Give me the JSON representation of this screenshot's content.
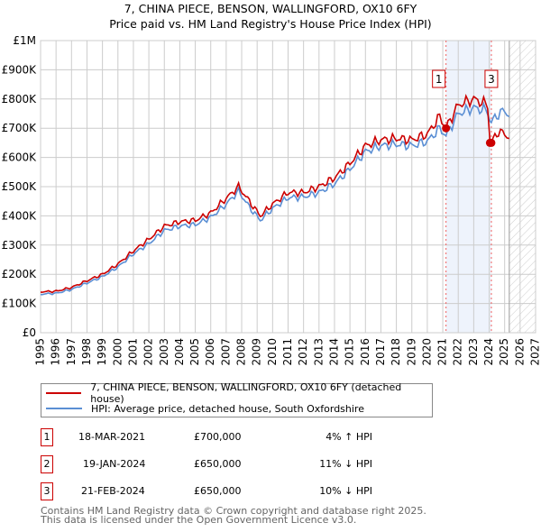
{
  "chart_data": {
    "type": "line",
    "title": "7, CHINA PIECE, BENSON, WALLINGFORD, OX10 6FY",
    "subtitle": "Price paid vs. HM Land Registry's House Price Index (HPI)",
    "xlim": [
      1995,
      2027
    ],
    "ylim": [
      0,
      1000000
    ],
    "y_ticks": [
      {
        "v": 0,
        "label": "£0"
      },
      {
        "v": 100000,
        "label": "£100K"
      },
      {
        "v": 200000,
        "label": "£200K"
      },
      {
        "v": 300000,
        "label": "£300K"
      },
      {
        "v": 400000,
        "label": "£400K"
      },
      {
        "v": 500000,
        "label": "£500K"
      },
      {
        "v": 600000,
        "label": "£600K"
      },
      {
        "v": 700000,
        "label": "£700K"
      },
      {
        "v": 800000,
        "label": "£800K"
      },
      {
        "v": 900000,
        "label": "£900K"
      },
      {
        "v": 1000000,
        "label": "£1M"
      }
    ],
    "x_ticks": [
      "1995",
      "1996",
      "1997",
      "1998",
      "1999",
      "2000",
      "2001",
      "2002",
      "2003",
      "2004",
      "2005",
      "2006",
      "2007",
      "2008",
      "2009",
      "2010",
      "2011",
      "2012",
      "2013",
      "2014",
      "2015",
      "2016",
      "2017",
      "2018",
      "2019",
      "2020",
      "2021",
      "2022",
      "2023",
      "2024",
      "2025",
      "2026",
      "2027"
    ],
    "grid": true,
    "shaded_range": [
      2021.21,
      2024.14
    ],
    "forecast_hatch_from": 2025.3,
    "series": [
      {
        "name": "7, CHINA PIECE, BENSON, WALLINGFORD, OX10 6FY (detached house)",
        "color": "#cc0000",
        "x": [
          1995,
          1996,
          1997,
          1998,
          1999,
          2000,
          2001,
          2002,
          2003,
          2004,
          2005,
          2006,
          2007,
          2007.8,
          2008.5,
          2009.2,
          2010,
          2011,
          2012,
          2013,
          2014,
          2015,
          2016,
          2017,
          2018,
          2019,
          2020,
          2020.8,
          2021.21,
          2022,
          2023,
          2023.9,
          2024.06,
          2024.14,
          2024.6,
          2025,
          2025.3
        ],
        "y": [
          140000,
          142000,
          155000,
          178000,
          200000,
          235000,
          280000,
          320000,
          365000,
          380000,
          385000,
          410000,
          460000,
          500000,
          450000,
          400000,
          440000,
          480000,
          480000,
          500000,
          530000,
          580000,
          640000,
          660000,
          665000,
          660000,
          680000,
          740000,
          700000,
          780000,
          800000,
          780000,
          650000,
          650000,
          690000,
          680000,
          665000
        ]
      },
      {
        "name": "HPI: Average price, detached house, South Oxfordshire",
        "color": "#5b8fd4",
        "x": [
          1995,
          1996,
          1997,
          1998,
          1999,
          2000,
          2001,
          2002,
          2003,
          2004,
          2005,
          2006,
          2007,
          2007.8,
          2008.5,
          2009.2,
          2010,
          2011,
          2012,
          2013,
          2014,
          2015,
          2016,
          2017,
          2018,
          2019,
          2020,
          2020.8,
          2021.21,
          2022,
          2023,
          2023.9,
          2024.06,
          2024.14,
          2024.6,
          2025,
          2025.3
        ],
        "y": [
          132000,
          135000,
          148000,
          170000,
          192000,
          225000,
          270000,
          305000,
          350000,
          365000,
          370000,
          395000,
          440000,
          485000,
          430000,
          385000,
          425000,
          462000,
          465000,
          480000,
          510000,
          560000,
          620000,
          640000,
          645000,
          640000,
          655000,
          700000,
          675000,
          750000,
          770000,
          760000,
          725000,
          720000,
          750000,
          760000,
          740000
        ]
      }
    ],
    "sales": [
      {
        "id": "1",
        "x": 2021.21,
        "y": 700000,
        "date": "18-MAR-2021",
        "price": "£700,000",
        "hpi": "4% ↑ HPI"
      },
      {
        "id": "2",
        "x": 2024.05,
        "y": 650000,
        "date": "19-JAN-2024",
        "price": "£650,000",
        "hpi": "11% ↓ HPI"
      },
      {
        "id": "3",
        "x": 2024.14,
        "y": 650000,
        "date": "21-FEB-2024",
        "price": "£650,000",
        "hpi": "10% ↓ HPI"
      }
    ],
    "marker_labels_shown": [
      "1",
      "3"
    ]
  },
  "footer": {
    "line1": "Contains HM Land Registry data © Crown copyright and database right 2025.",
    "line2": "This data is licensed under the Open Government Licence v3.0."
  }
}
